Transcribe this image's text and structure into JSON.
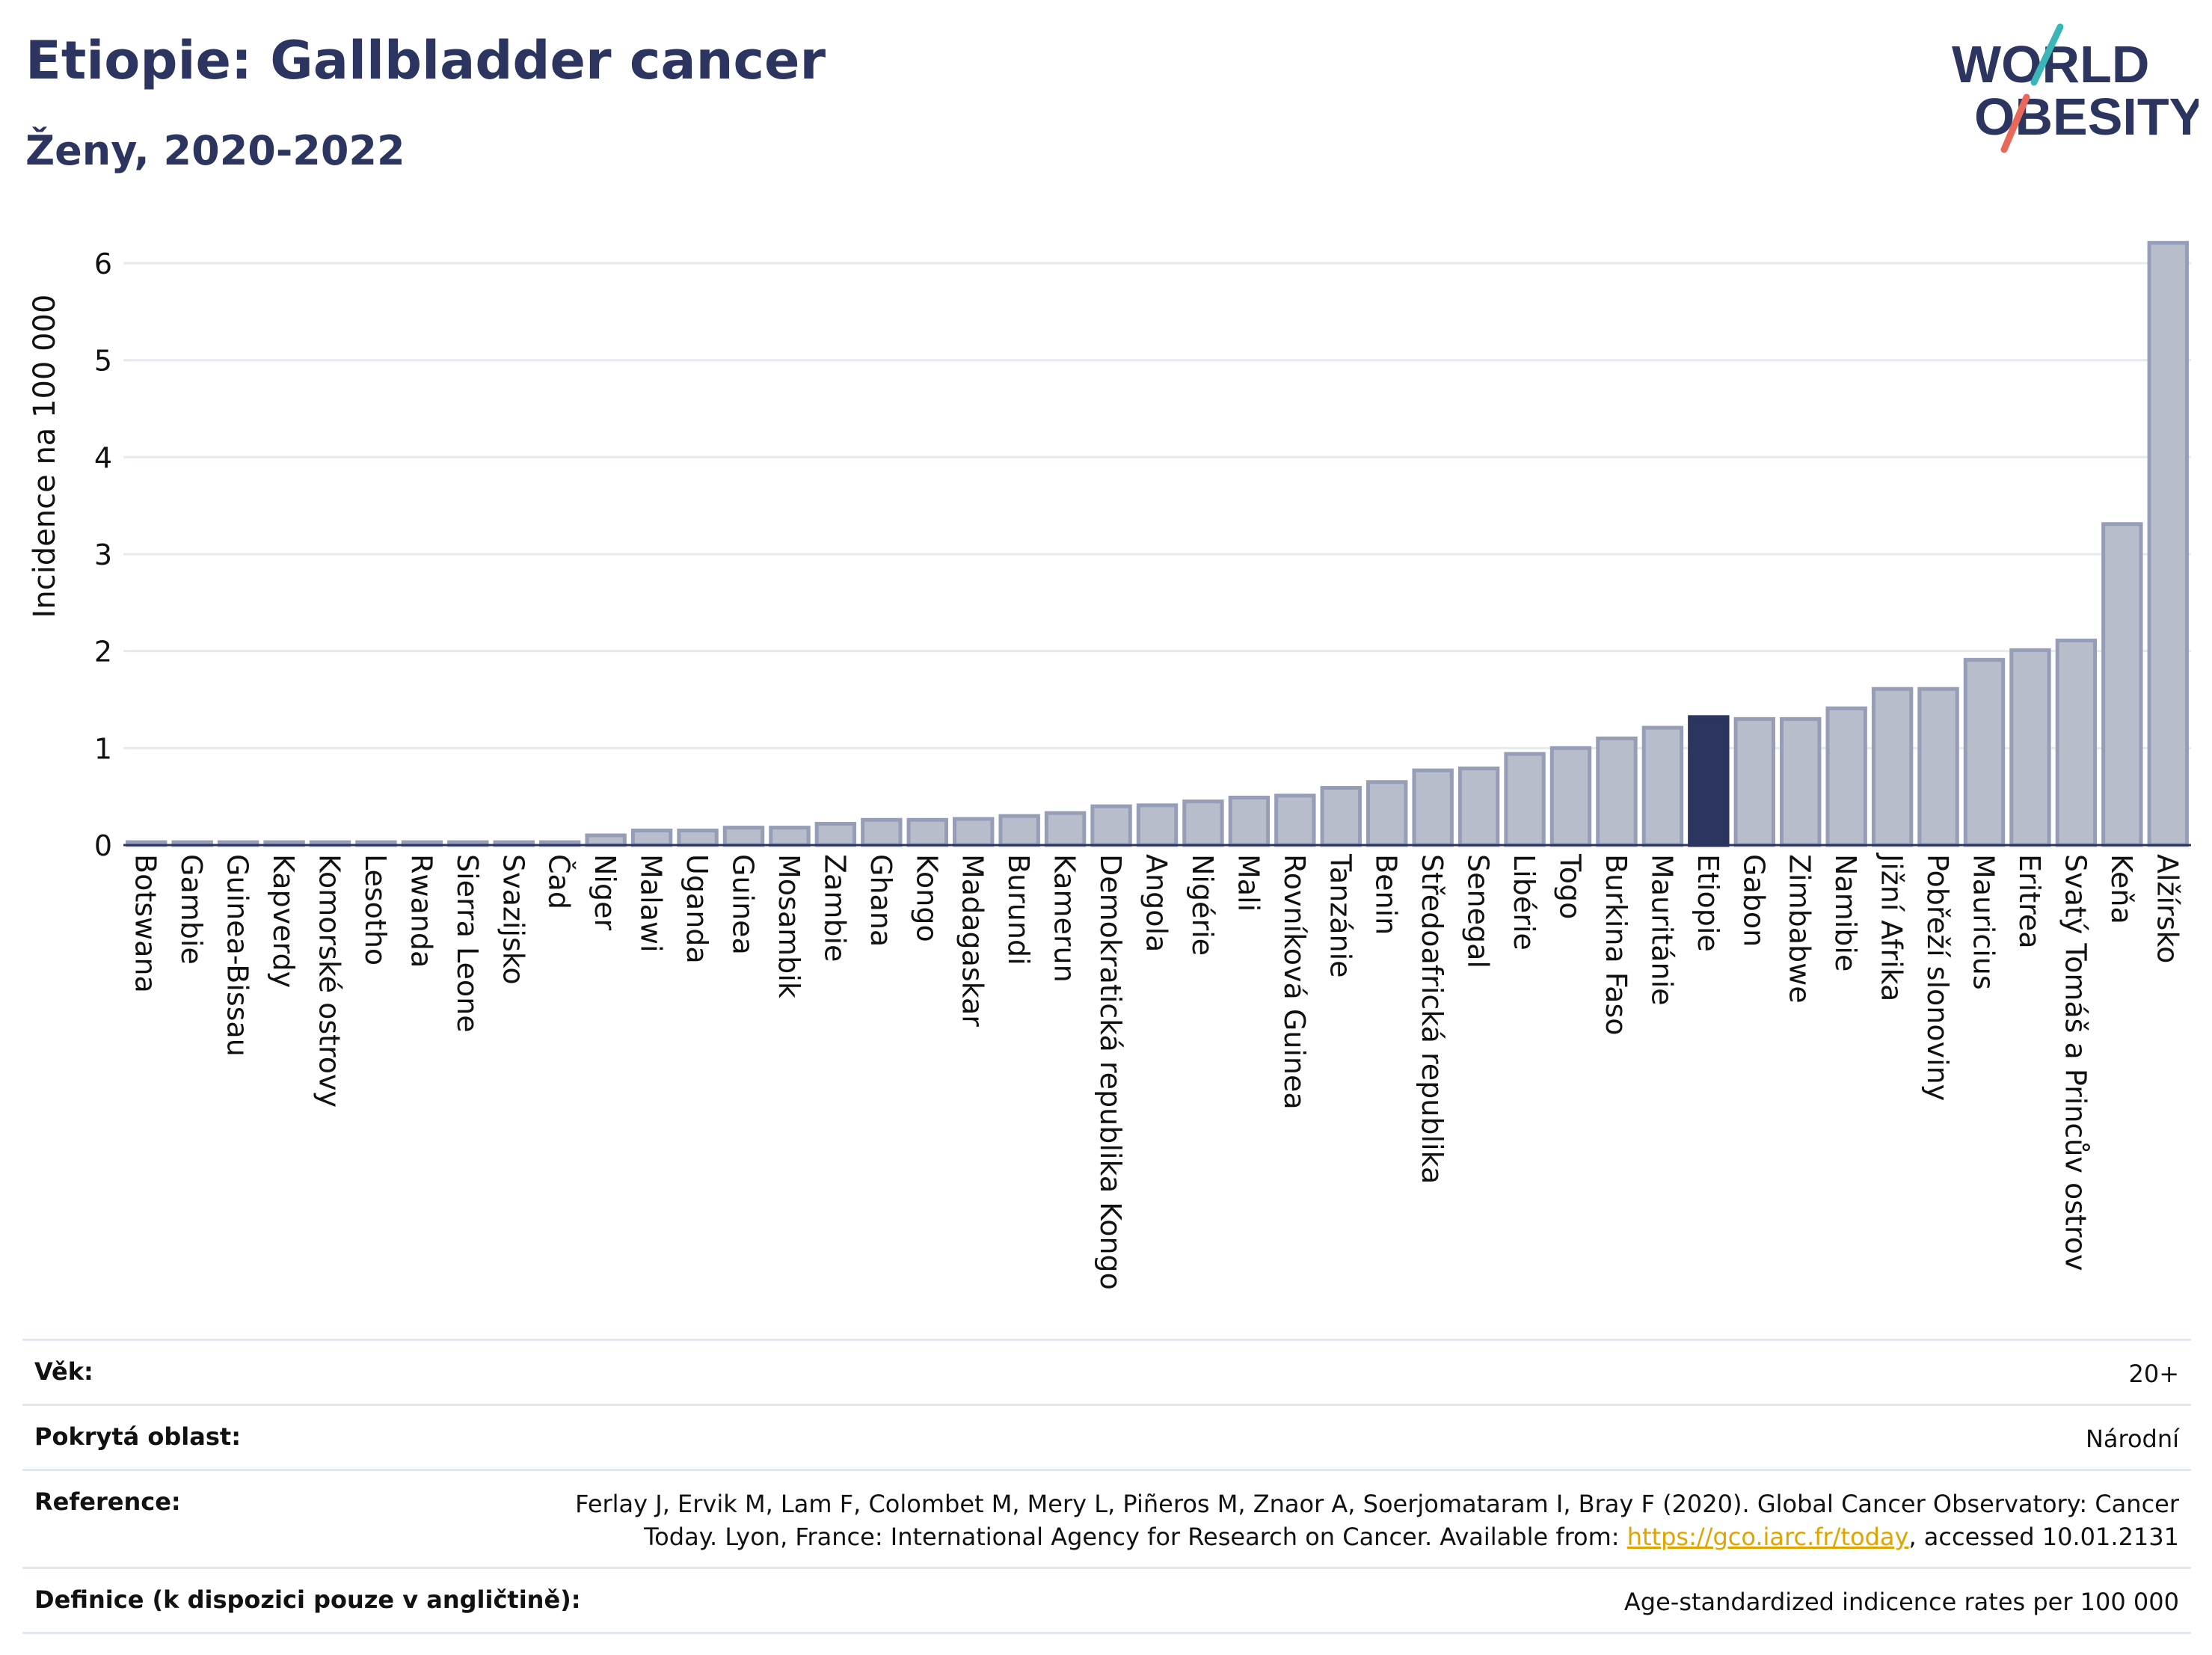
{
  "header": {
    "title": "Etiopie: Gallbladder cancer",
    "subtitle": "Ženy, 2020-2022",
    "logo_line1": "WORLD",
    "logo_line2": "OBESITY"
  },
  "colors": {
    "bar": "#b8bdcc",
    "bar_stroke": "#969db7",
    "highlight": "#2b3560",
    "grid": "#e6e9ee",
    "axis": "#2b3560",
    "logo_teal": "#3bb6b8",
    "logo_red": "#e8685a",
    "link": "#e0a400"
  },
  "chart_data": {
    "type": "bar",
    "title": "Etiopie: Gallbladder cancer",
    "subtitle": "Ženy, 2020-2022",
    "ylabel": "Incidence na 100 000",
    "xlabel": "",
    "ylim": [
      0,
      6.4
    ],
    "yticks": [
      0,
      1,
      2,
      3,
      4,
      5,
      6
    ],
    "grid": true,
    "highlight": "Etiopie",
    "categories": [
      "Botswana",
      "Gambie",
      "Guinea-Bissau",
      "Kapverdy",
      "Komorské ostrovy",
      "Lesotho",
      "Rwanda",
      "Sierra Leone",
      "Svazijsko",
      "Čad",
      "Niger",
      "Malawi",
      "Uganda",
      "Guinea",
      "Mosambik",
      "Zambie",
      "Ghana",
      "Kongo",
      "Madagaskar",
      "Burundi",
      "Kamerun",
      "Demokratická republika Kongo",
      "Angola",
      "Nigérie",
      "Mali",
      "Rovníková Guinea",
      "Tanzánie",
      "Benin",
      "Středoafrická republika",
      "Senegal",
      "Libérie",
      "Togo",
      "Burkina Faso",
      "Mauritánie",
      "Etiopie",
      "Gabon",
      "Zimbabwe",
      "Namibie",
      "Jižní Afrika",
      "Pobřeží slonoviny",
      "Mauricius",
      "Eritrea",
      "Svatý Tomáš a Princův ostrov",
      "Keňa",
      "Alžírsko"
    ],
    "values": [
      0.03,
      0.03,
      0.03,
      0.03,
      0.03,
      0.03,
      0.03,
      0.03,
      0.03,
      0.03,
      0.1,
      0.15,
      0.15,
      0.18,
      0.18,
      0.22,
      0.26,
      0.26,
      0.27,
      0.3,
      0.33,
      0.4,
      0.41,
      0.45,
      0.49,
      0.51,
      0.59,
      0.65,
      0.77,
      0.79,
      0.94,
      1.0,
      1.1,
      1.21,
      1.32,
      1.3,
      1.3,
      1.41,
      1.61,
      1.61,
      1.91,
      2.01,
      2.11,
      3.31,
      6.21
    ]
  },
  "footer": {
    "rows": [
      {
        "label": "Věk:",
        "value": "20+"
      },
      {
        "label": "Pokrytá oblast:",
        "value": "Národní"
      },
      {
        "label": "Reference:",
        "value_before_link": "Ferlay J, Ervik M, Lam F, Colombet M, Mery L, Piñeros M, Znaor A, Soerjomataram I, Bray F (2020). Global Cancer Observatory: Cancer Today. Lyon, France: International Agency for Research on Cancer. Available from: ",
        "link": "https://gco.iarc.fr/today",
        "value_after_link": ", accessed 10.01.2131"
      },
      {
        "label": "Definice (k dispozici pouze v angličtině):",
        "value": "Age-standardized indicence rates per 100 000"
      }
    ]
  }
}
